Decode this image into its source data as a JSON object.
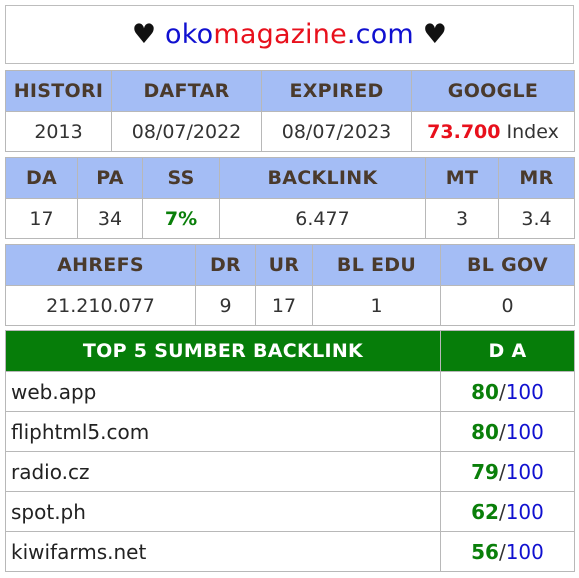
{
  "header": {
    "heart_left": "♥",
    "domain_part1": "oko",
    "domain_part2": "magazine",
    "domain_part3": ".com",
    "heart_right": "♥"
  },
  "table1": {
    "headers": [
      "HISTORI",
      "DAFTAR",
      "EXPIRED",
      "GOOGLE"
    ],
    "values": {
      "histori": "2013",
      "daftar": "08/07/2022",
      "expired": "08/07/2023",
      "google_value": "73.700",
      "google_suffix": " Index"
    }
  },
  "table2": {
    "headers": [
      "DA",
      "PA",
      "SS",
      "BACKLINK",
      "MT",
      "MR"
    ],
    "values": [
      "17",
      "34",
      "7%",
      "6.477",
      "3",
      "3.4"
    ]
  },
  "table3": {
    "headers": [
      "AHREFS",
      "DR",
      "UR",
      "BL EDU",
      "BL GOV"
    ],
    "values": [
      "21.210.077",
      "9",
      "17",
      "1",
      "0"
    ]
  },
  "top5": {
    "header_source": "TOP 5 SUMBER BACKLINK",
    "header_da": "D A",
    "slash": "/",
    "rows": [
      {
        "source": "web.app",
        "da": "80",
        "max": "100"
      },
      {
        "source": "fliphtml5.com",
        "da": "80",
        "max": "100"
      },
      {
        "source": "radio.cz",
        "da": "79",
        "max": "100"
      },
      {
        "source": "spot.ph",
        "da": "62",
        "max": "100"
      },
      {
        "source": "kiwifarms.net",
        "da": "56",
        "max": "100"
      }
    ]
  },
  "colors": {
    "header_bg": "#a4bdf5",
    "top5_header_bg": "#067d09",
    "red": "#e8101c",
    "green": "#0a7f0a",
    "blue": "#1010d0"
  }
}
